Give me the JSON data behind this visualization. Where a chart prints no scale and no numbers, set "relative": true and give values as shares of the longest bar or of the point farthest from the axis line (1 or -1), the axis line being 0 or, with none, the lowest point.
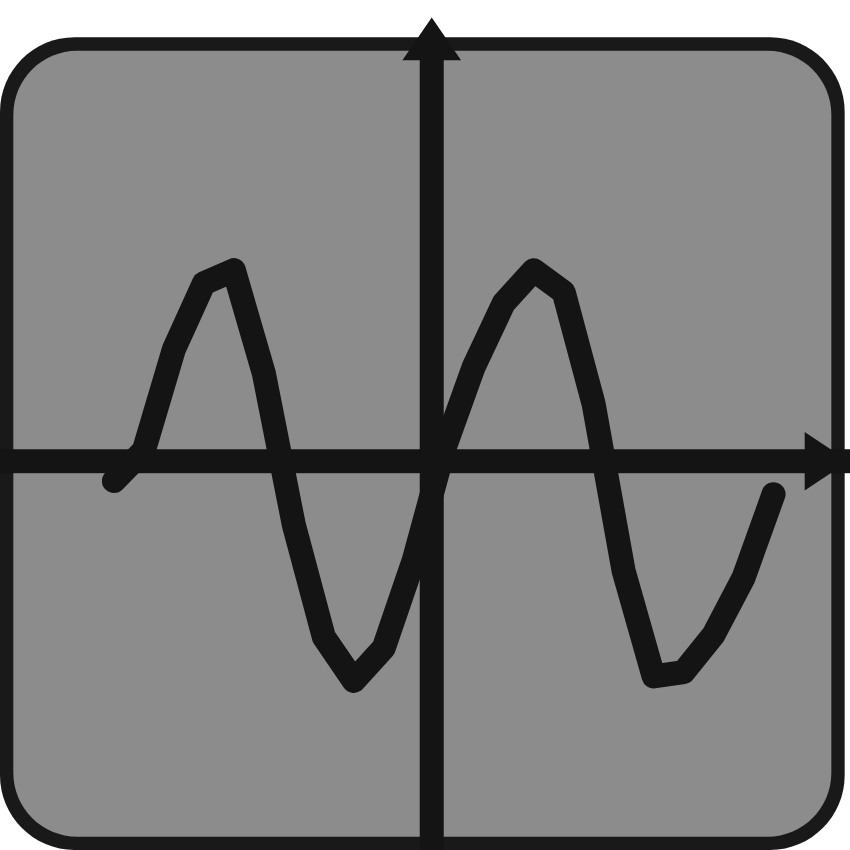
{
  "chart_data": {
    "type": "line",
    "relative": true,
    "categories": [
      null,
      null,
      null,
      null,
      null,
      null,
      null,
      null,
      null,
      null,
      null,
      null,
      null,
      null,
      null,
      null,
      null,
      null,
      null,
      null,
      null,
      null,
      null
    ],
    "series": [
      {
        "color": "#141414",
        "values": [
          -0.09,
          0.05,
          0.51,
          0.81,
          0.87,
          0.4,
          -0.29,
          -0.8,
          -1,
          -0.85,
          -0.45,
          0.05,
          0.43,
          0.72,
          0.87,
          0.77,
          0.26,
          -0.5,
          -0.98,
          -0.96,
          -0.79,
          -0.53,
          -0.15
        ]
      }
    ]
  }
}
